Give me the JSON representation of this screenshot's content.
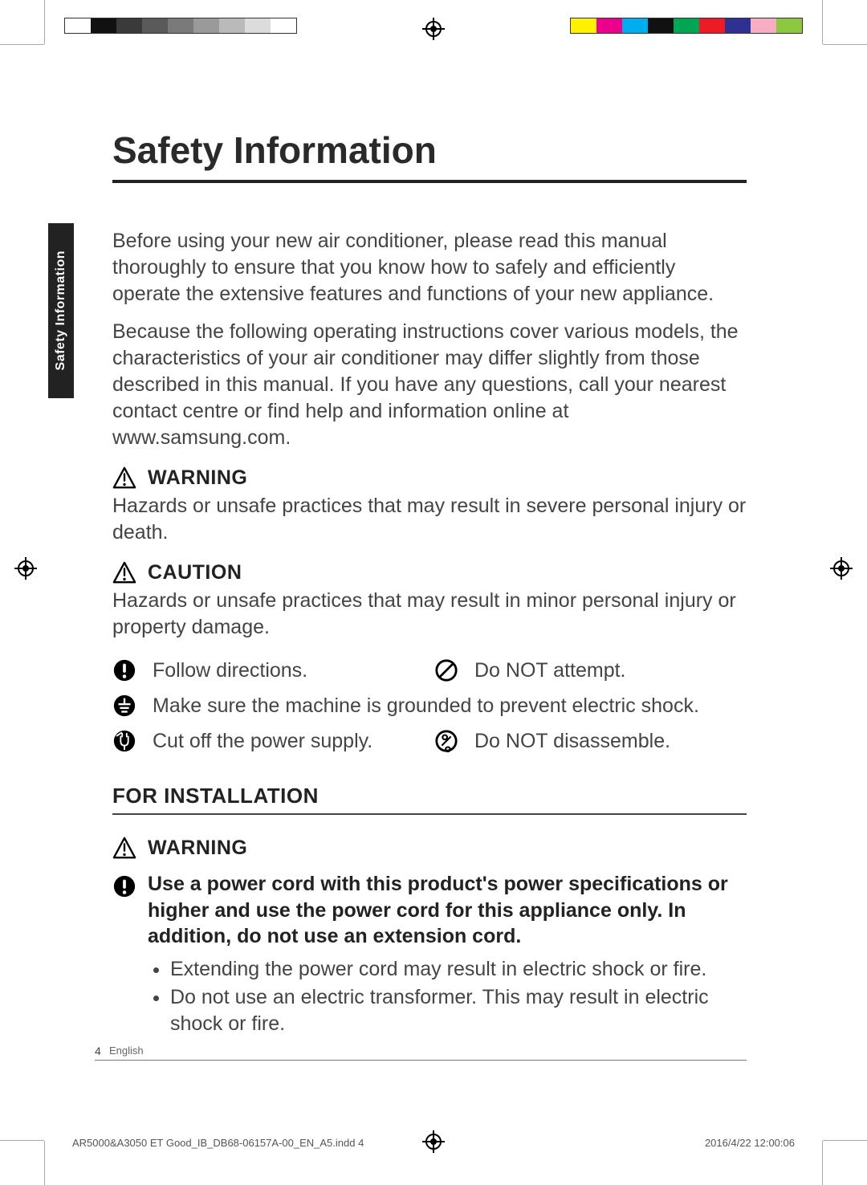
{
  "print": {
    "left_swatches": [
      "#ffffff",
      "#111111",
      "#3a3a3a",
      "#5a5a5a",
      "#7a7a7a",
      "#9a9a9a",
      "#bababa",
      "#dcdcdc",
      "#ffffff"
    ],
    "right_swatches": [
      "#fff200",
      "#ec008c",
      "#00aeef",
      "#111111",
      "#00a651",
      "#ed1c24",
      "#2e3192",
      "#f7adc3",
      "#8dc63f"
    ]
  },
  "side_tab": {
    "label": "Safety Information"
  },
  "title": "Safety Information",
  "intro": [
    "Before using your new air conditioner, please read this manual thoroughly to ensure that you know how to safely and efficiently operate the extensive features and functions of your new appliance.",
    "Because the following operating instructions cover various models, the characteristics of your air conditioner may differ slightly from those described in this manual. If you have any questions, call your nearest contact centre or find help and information online at www.samsung.com."
  ],
  "alerts": {
    "warning": {
      "label": "WARNING",
      "text": "Hazards or unsafe practices that may result in severe personal injury or death."
    },
    "caution": {
      "label": "CAUTION",
      "text": "Hazards or unsafe practices that may result in minor personal injury or property damage."
    }
  },
  "symbols": {
    "follow": "Follow directions.",
    "donot": "Do NOT attempt.",
    "ground": "Make sure the machine is grounded to prevent electric shock.",
    "cutpower": "Cut off the power supply.",
    "nodis": "Do NOT disassemble."
  },
  "section_install": {
    "heading": "FOR INSTALLATION",
    "warning_label": "WARNING",
    "lead": "Use a power cord with this product's power specifications or higher and use the power cord for this appliance only. In addition, do not use an extension cord.",
    "bullets": [
      "Extending the power cord may result in electric shock or fire.",
      "Do not use an electric transformer. This may result in electric shock or fire."
    ]
  },
  "footer": {
    "page_number": "4",
    "language": "English",
    "slug_left": "AR5000&A3050 ET Good_IB_DB68-06157A-00_EN_A5.indd   4",
    "slug_right": "2016/4/22   12:00:06"
  }
}
